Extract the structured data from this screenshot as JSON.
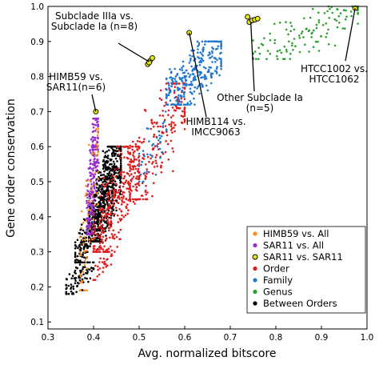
{
  "chart_data": {
    "type": "scatter",
    "xlabel": "Avg. normalized bitscore",
    "ylabel": "Gene order conservation",
    "xlim": [
      0.3,
      1.0
    ],
    "ylim": [
      0.08,
      1.0
    ],
    "xticks": [
      "0.3",
      "0.4",
      "0.5",
      "0.6",
      "0.7",
      "0.8",
      "0.9",
      "1.0"
    ],
    "yticks": [
      "0.1",
      "0.2",
      "0.3",
      "0.4",
      "0.5",
      "0.6",
      "0.7",
      "0.8",
      "0.9",
      "1.0"
    ],
    "legend_position": "bottom-right",
    "series": [
      {
        "name": "HIMB59 vs. All",
        "color": "#ff8c1a",
        "marker": "dot",
        "clusters": [
          {
            "x": [
              0.37,
              0.41
            ],
            "y": [
              0.19,
              0.65
            ],
            "n": 70
          }
        ]
      },
      {
        "name": "SAR11 vs. All",
        "color": "#9b30d0",
        "marker": "dot",
        "clusters": [
          {
            "x": [
              0.385,
              0.41
            ],
            "y": [
              0.35,
              0.68
            ],
            "n": 240
          }
        ]
      },
      {
        "name": "SAR11 vs. SAR11",
        "color": "#e6e61a",
        "marker": "ring",
        "points": [
          {
            "x": 0.519,
            "y": 0.835
          },
          {
            "x": 0.524,
            "y": 0.845
          },
          {
            "x": 0.529,
            "y": 0.853
          },
          {
            "x": 0.522,
            "y": 0.84
          },
          {
            "x": 0.405,
            "y": 0.7
          },
          {
            "x": 0.61,
            "y": 0.925
          },
          {
            "x": 0.742,
            "y": 0.955
          },
          {
            "x": 0.748,
            "y": 0.96
          },
          {
            "x": 0.754,
            "y": 0.962
          },
          {
            "x": 0.76,
            "y": 0.965
          },
          {
            "x": 0.738,
            "y": 0.97
          },
          {
            "x": 0.974,
            "y": 0.995
          }
        ]
      },
      {
        "name": "Order",
        "color": "#e01b1b",
        "marker": "dot",
        "clusters": [
          {
            "x": [
              0.4,
              0.5
            ],
            "y": [
              0.3,
              0.6
            ],
            "n": 330
          },
          {
            "x": [
              0.48,
              0.6
            ],
            "y": [
              0.45,
              0.78
            ],
            "n": 230
          },
          {
            "x": [
              0.4,
              0.44
            ],
            "y": [
              0.22,
              0.3
            ],
            "n": 30
          }
        ]
      },
      {
        "name": "Family",
        "color": "#1f77d4",
        "marker": "dot",
        "clusters": [
          {
            "x": [
              0.56,
              0.68
            ],
            "y": [
              0.72,
              0.9
            ],
            "n": 300
          },
          {
            "x": [
              0.5,
              0.56
            ],
            "y": [
              0.5,
              0.7
            ],
            "n": 40
          }
        ]
      },
      {
        "name": "Genus",
        "color": "#2ca02c",
        "marker": "dot",
        "clusters": [
          {
            "x": [
              0.75,
              0.98
            ],
            "y": [
              0.85,
              1.0
            ],
            "n": 120
          }
        ]
      },
      {
        "name": "Between Orders",
        "color": "#000000",
        "marker": "dot",
        "clusters": [
          {
            "x": [
              0.39,
              0.46
            ],
            "y": [
              0.33,
              0.6
            ],
            "n": 650
          },
          {
            "x": [
              0.36,
              0.41
            ],
            "y": [
              0.27,
              0.42
            ],
            "n": 180
          },
          {
            "x": [
              0.34,
              0.4
            ],
            "y": [
              0.18,
              0.27
            ],
            "n": 90
          }
        ]
      }
    ],
    "annotations": [
      {
        "lines": [
          "Subclade IIIa vs.",
          "Subclade Ia (n=8)"
        ],
        "target": {
          "x": 0.522,
          "y": 0.842
        }
      },
      {
        "lines": [
          "HIMB59 vs.",
          "SAR11(n=6)"
        ],
        "target": {
          "x": 0.405,
          "y": 0.7
        }
      },
      {
        "lines": [
          "HIMB114 vs.",
          "IMCC9063"
        ],
        "target": {
          "x": 0.61,
          "y": 0.925
        }
      },
      {
        "lines": [
          "Other Subclade Ia",
          "(n=5)"
        ],
        "target": {
          "x": 0.745,
          "y": 0.955
        }
      },
      {
        "lines": [
          "HTCC1002 vs.",
          "HTCC1062"
        ],
        "target": {
          "x": 0.974,
          "y": 0.995
        }
      }
    ]
  }
}
